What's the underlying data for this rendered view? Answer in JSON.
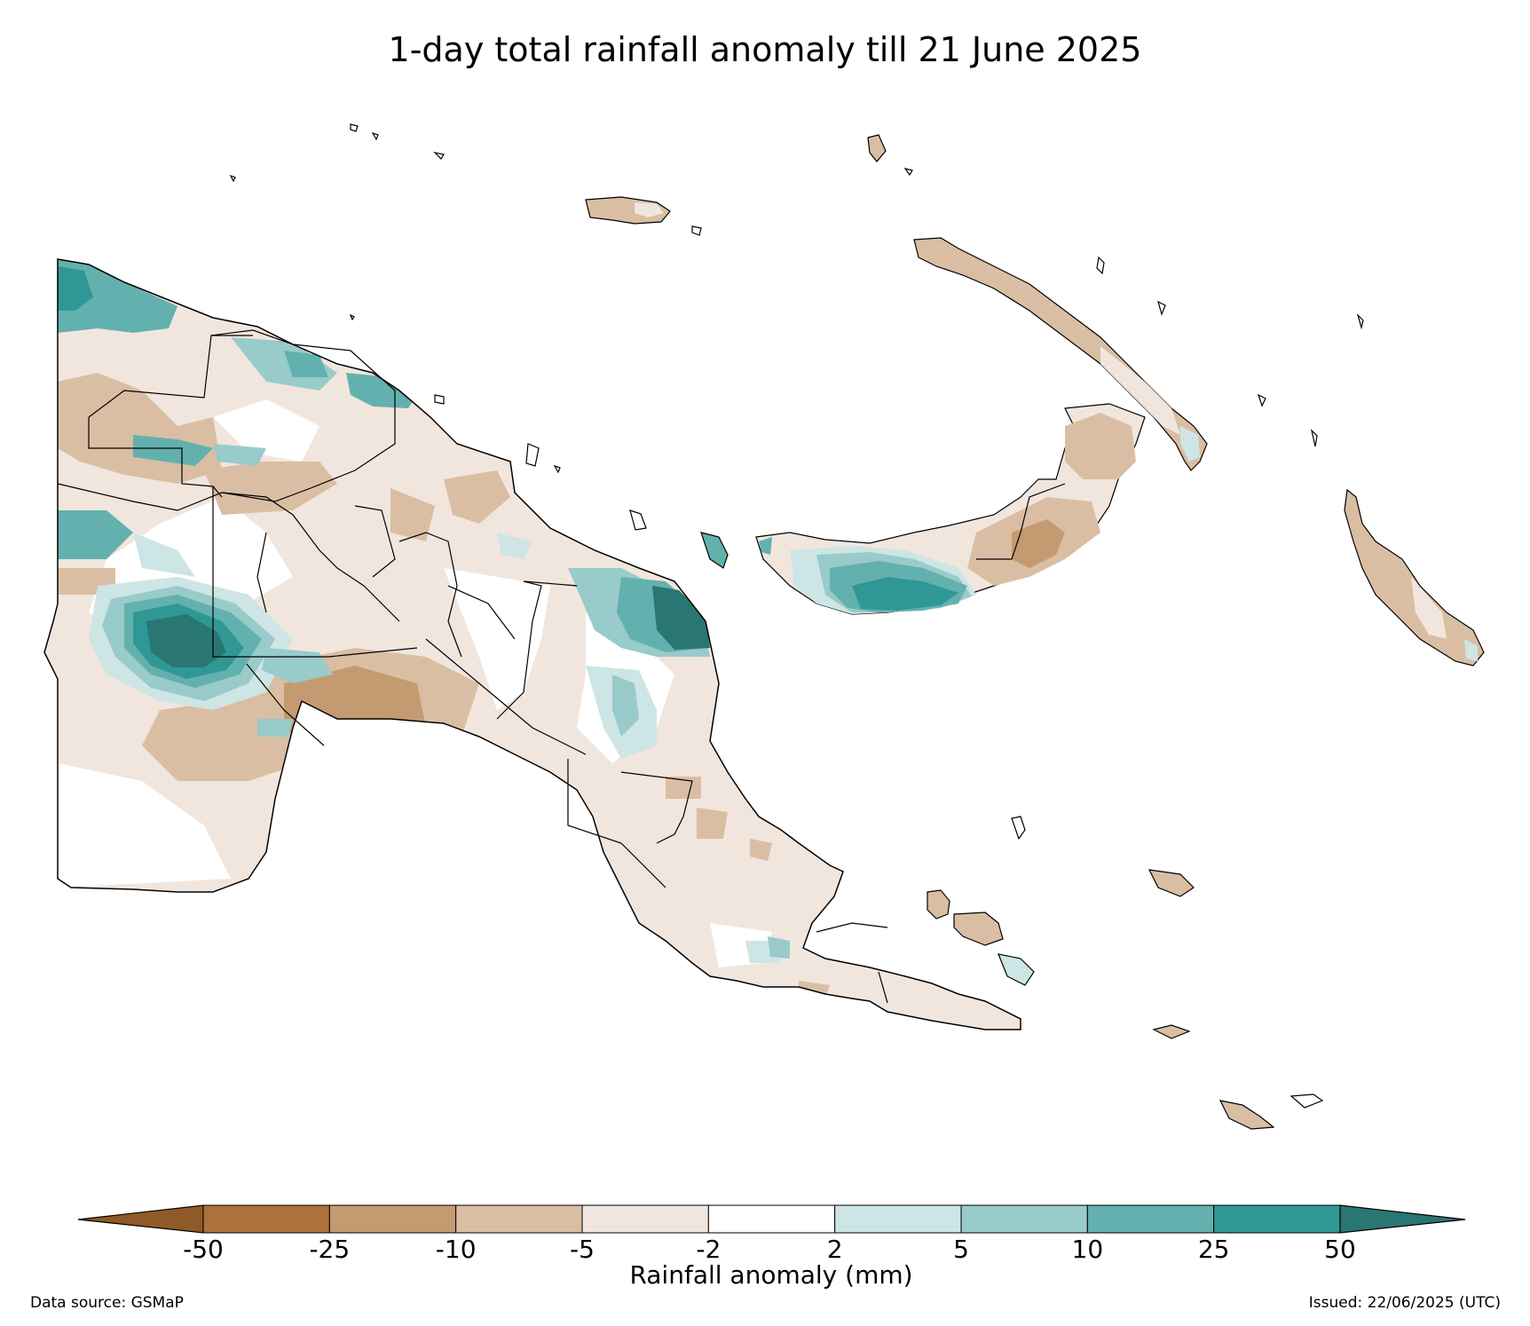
{
  "title": "1-day total rainfall anomaly till 21 June 2025",
  "colorbar": {
    "label": "Rainfall anomaly (mm)",
    "ticks": [
      "-50",
      "-25",
      "-10",
      "-5",
      "-2",
      "2",
      "5",
      "10",
      "25",
      "50"
    ],
    "colors": [
      "#ad713a",
      "#c49a71",
      "#dabea3",
      "#f1e6de",
      "#ffffff",
      "#cde5e5",
      "#98cbc9",
      "#63b1ae",
      "#309894"
    ],
    "under_color": "#8f5a28",
    "over_color": "#2a7672"
  },
  "anomaly_colors": {
    "strong_dry": "#ad713a",
    "dry": "#c49a71",
    "moderate_dry": "#dabea3",
    "slight_dry": "#f1e6de",
    "neutral": "#ffffff",
    "slight_wet": "#cde5e5",
    "moderate_wet": "#98cbc9",
    "wet": "#63b1ae",
    "very_wet": "#309894",
    "extreme_wet": "#2a7672"
  },
  "footer": {
    "source": "Data source: GSMaP",
    "issued": "Issued: 22/06/2025 (UTC)"
  }
}
